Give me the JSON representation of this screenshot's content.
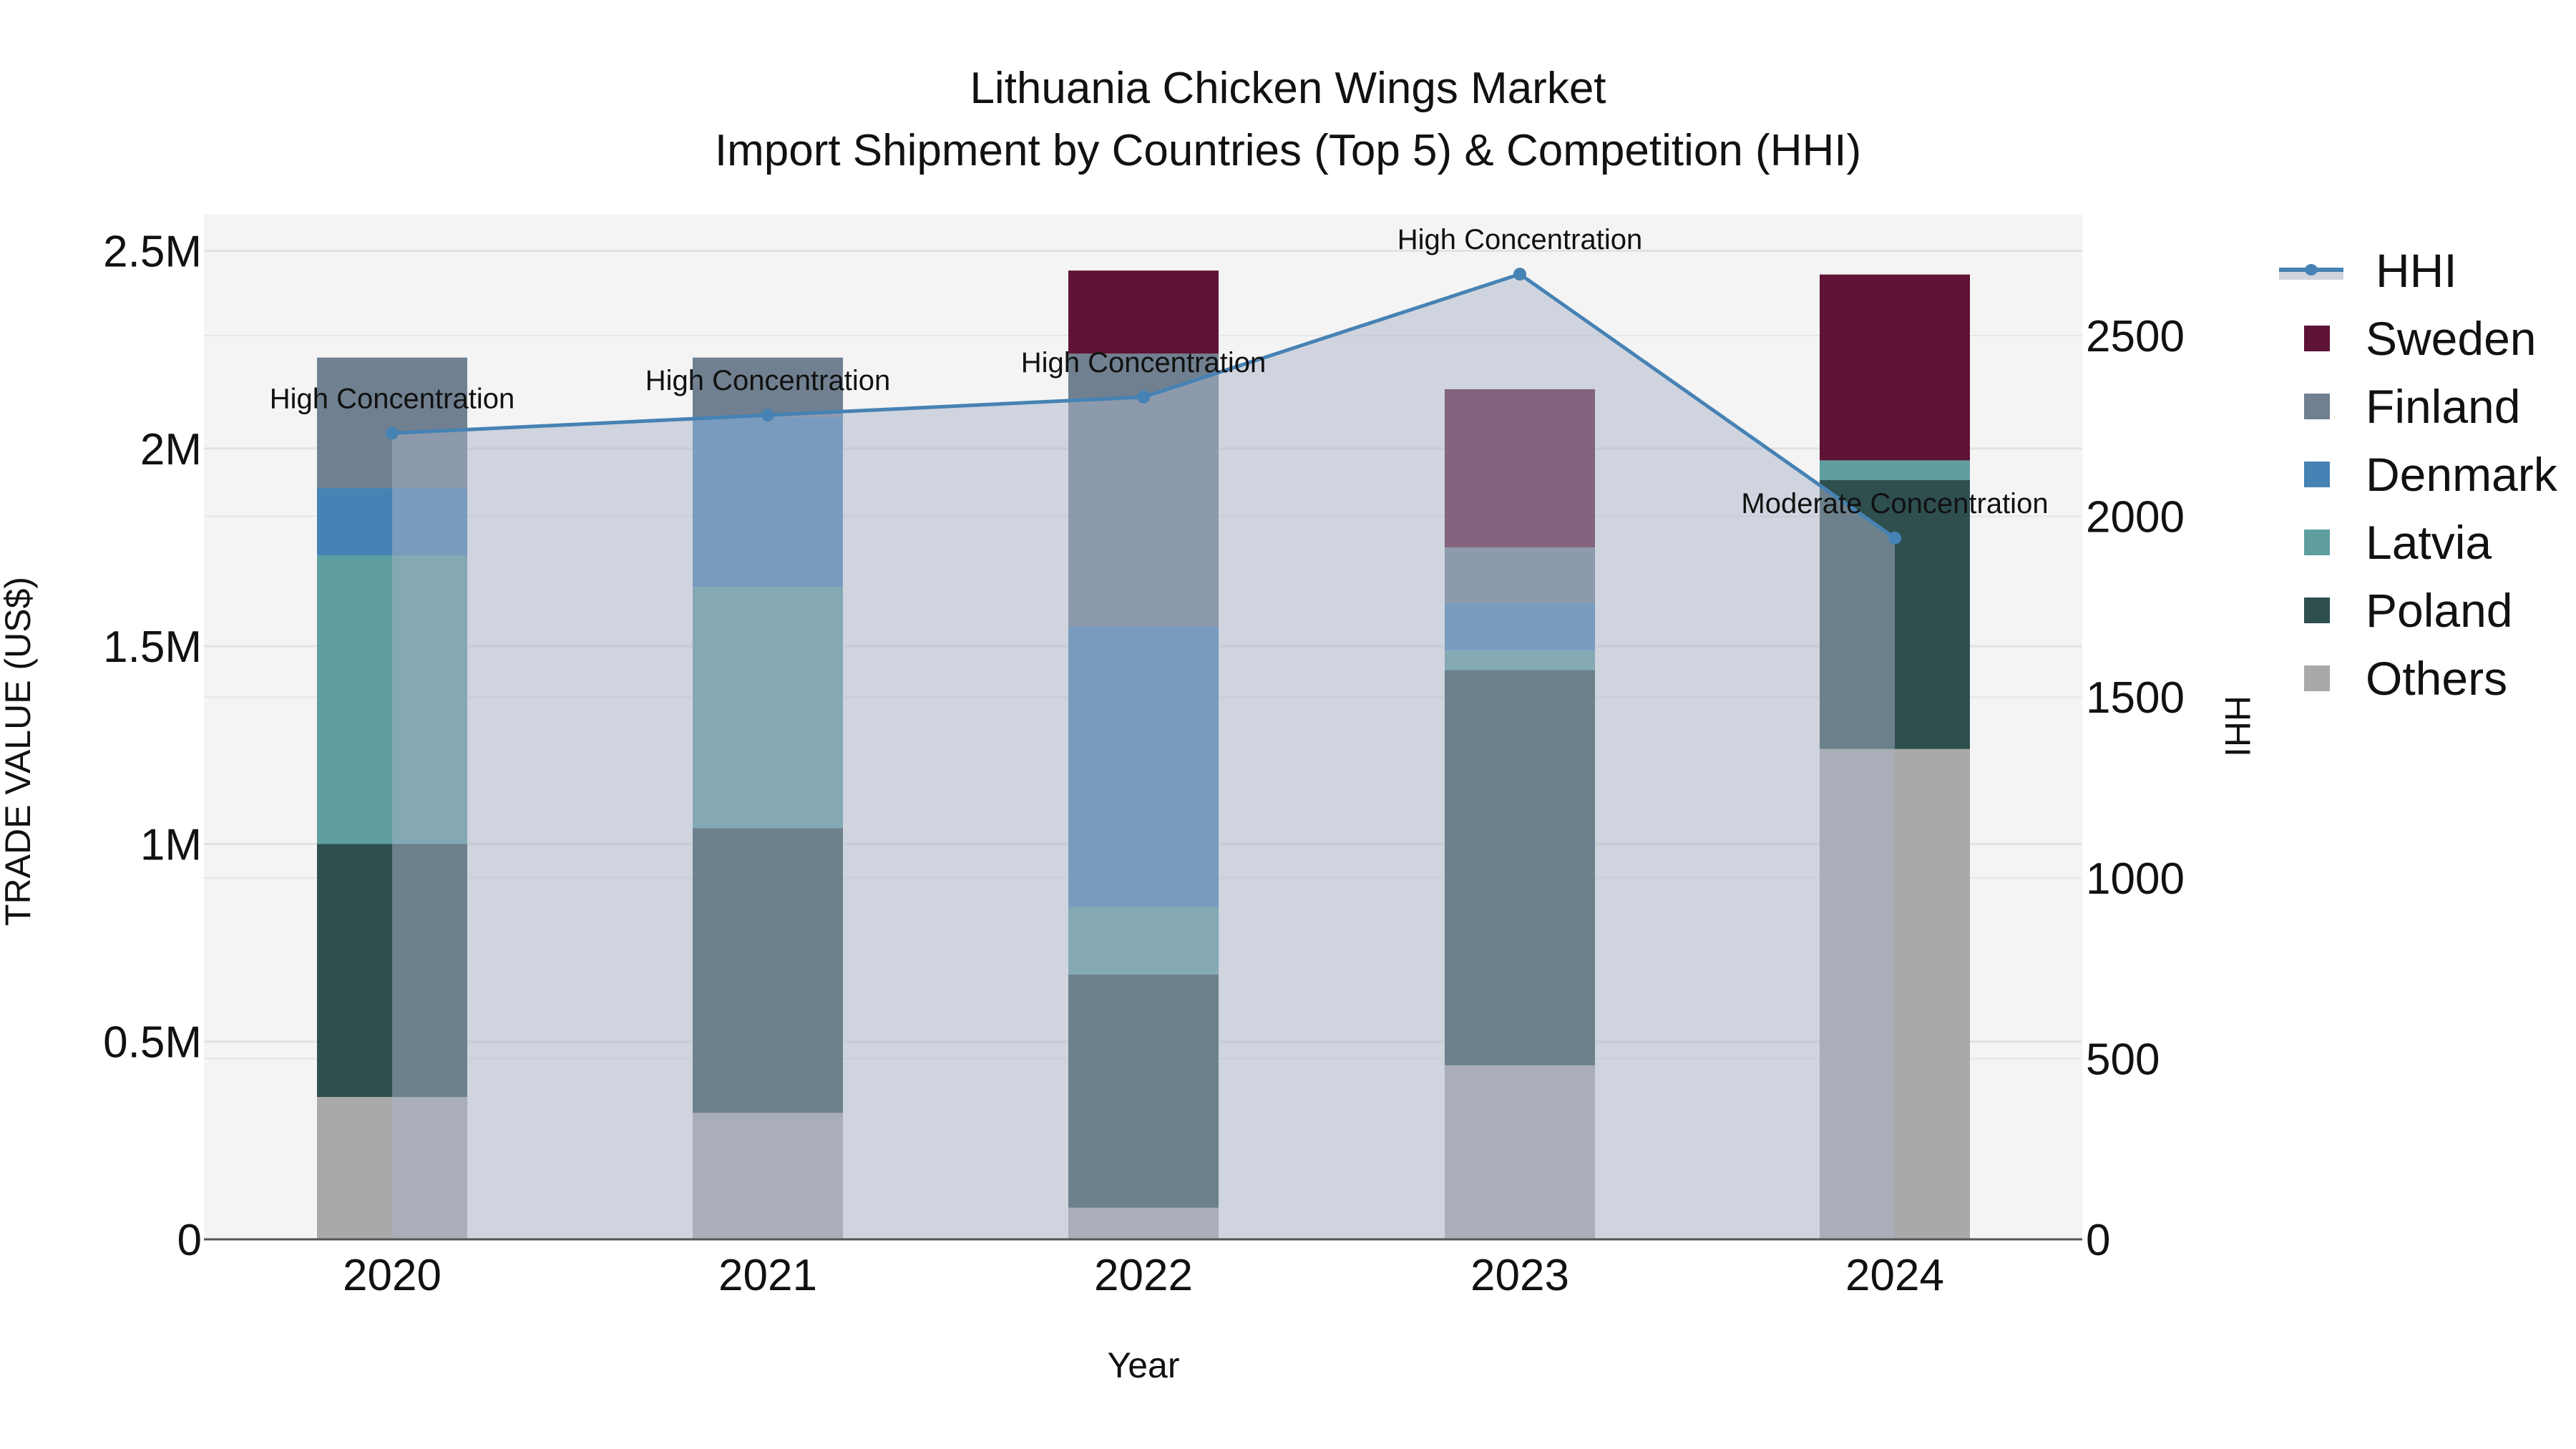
{
  "title": {
    "line1": "Lithuania Chicken Wings Market",
    "line2": "Import Shipment by Countries (Top 5) & Competition (HHI)"
  },
  "axes": {
    "x_label": "Year",
    "y_left_label": "TRADE VALUE (US$)",
    "y_right_label": "HHI",
    "y_left_ticks": [
      "0",
      "0.5M",
      "1M",
      "1.5M",
      "2M",
      "2.5M"
    ],
    "y_right_ticks": [
      "0",
      "500",
      "1000",
      "1500",
      "2000",
      "2500"
    ],
    "x_ticks": [
      "2020",
      "2021",
      "2022",
      "2023",
      "2024"
    ]
  },
  "legend": [
    {
      "label": "HHI",
      "type": "line",
      "color": "#4682b4"
    },
    {
      "label": "Sweden",
      "type": "bar",
      "color": "#5f1335"
    },
    {
      "label": "Finland",
      "type": "bar",
      "color": "#708090"
    },
    {
      "label": "Denmark",
      "type": "bar",
      "color": "#4682b4"
    },
    {
      "label": "Latvia",
      "type": "bar",
      "color": "#5f9ea0"
    },
    {
      "label": "Poland",
      "type": "bar",
      "color": "#2f4f4f"
    },
    {
      "label": "Others",
      "type": "bar",
      "color": "#a9a9a9"
    }
  ],
  "chart_data": {
    "type": "bar",
    "title": "Lithuania Chicken Wings Market — Import Shipment by Countries (Top 5) & Competition (HHI)",
    "xlabel": "Year",
    "ylabel": "TRADE VALUE (US$)",
    "y2label": "HHI",
    "ylim": [
      0,
      2.6
    ],
    "y2lim": [
      0,
      2820
    ],
    "units": "million US$",
    "categories": [
      "2020",
      "2021",
      "2022",
      "2023",
      "2024"
    ],
    "stack_order_bottom_to_top": [
      "Others",
      "Poland",
      "Latvia",
      "Denmark",
      "Finland",
      "Sweden"
    ],
    "series": [
      {
        "name": "Others",
        "color": "#a9a9a9",
        "values": [
          0.36,
          0.32,
          0.08,
          0.44,
          1.24
        ]
      },
      {
        "name": "Poland",
        "color": "#2f4f4f",
        "values": [
          0.64,
          0.72,
          0.59,
          1.0,
          0.68
        ]
      },
      {
        "name": "Latvia",
        "color": "#5f9ea0",
        "values": [
          0.73,
          0.61,
          0.17,
          0.05,
          0.05
        ]
      },
      {
        "name": "Denmark",
        "color": "#4682b4",
        "values": [
          0.17,
          0.43,
          0.71,
          0.12,
          0.0
        ]
      },
      {
        "name": "Finland",
        "color": "#708090",
        "values": [
          0.33,
          0.15,
          0.69,
          0.14,
          0.0
        ]
      },
      {
        "name": "Sweden",
        "color": "#5f1335",
        "values": [
          0.0,
          0.0,
          0.21,
          0.4,
          0.47
        ]
      }
    ],
    "totals": [
      2.23,
      2.24,
      2.44,
      2.15,
      2.45
    ],
    "line_series": {
      "name": "HHI",
      "axis": "right",
      "color": "#4682b4",
      "fill": "tozeroy",
      "values": [
        2230,
        2280,
        2330,
        2670,
        1940
      ],
      "annotations": [
        "High Concentration",
        "High Concentration",
        "High Concentration",
        "High Concentration",
        "Moderate Concentration"
      ]
    },
    "grid": true,
    "legend_position": "right"
  }
}
